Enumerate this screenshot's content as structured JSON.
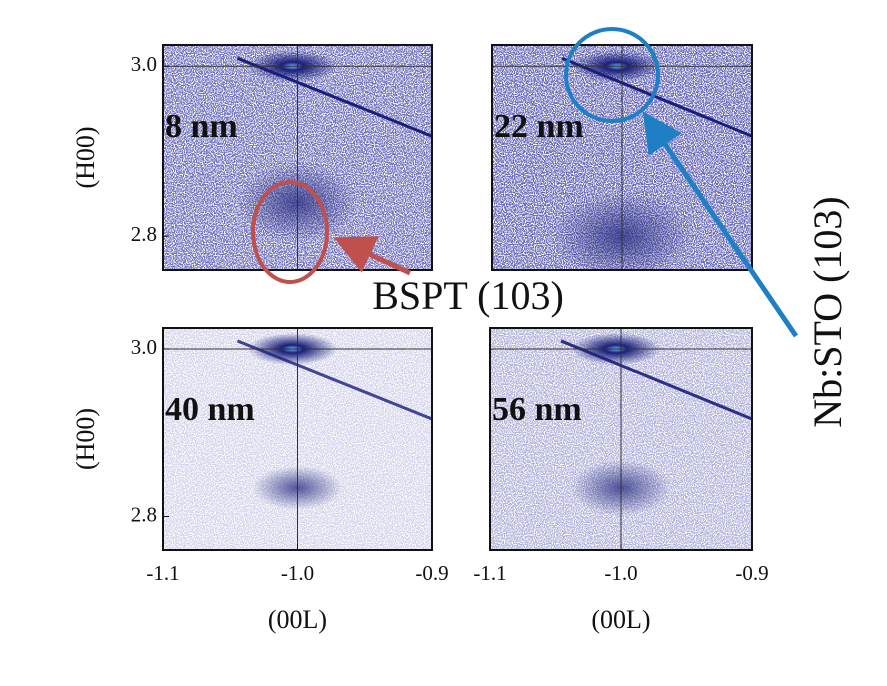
{
  "chart_data": [
    {
      "type": "map",
      "label": "8 nm",
      "ylabel": "(H00)",
      "xlim": [
        -1.1,
        -0.9
      ],
      "ylim": [
        2.76,
        3.025
      ],
      "yticks": [
        2.8,
        {
          "value": 3,
          "label": "3.0"
        }
      ],
      "crosshair": {
        "x": -1,
        "y": 3
      }
    },
    {
      "type": "map",
      "label": "22 nm",
      "xlim": [
        -1.1,
        -0.9
      ],
      "ylim": [
        2.76,
        3.025
      ],
      "crosshair": {
        "x": -1,
        "y": 3
      }
    },
    {
      "type": "map",
      "label": "40 nm",
      "ylabel": "(H00)",
      "xlabel": "(00L)",
      "xlim": [
        -1.1,
        -0.9
      ],
      "ylim": [
        2.76,
        3.025
      ],
      "xticks": [
        -1.1,
        {
          "value": -1,
          "label": "-1.0"
        },
        -0.9
      ],
      "yticks": [
        2.8,
        {
          "value": 3,
          "label": "3.0"
        }
      ],
      "crosshair": {
        "x": -1,
        "y": 3
      }
    },
    {
      "type": "map",
      "label": "56 nm",
      "xlabel": "(00L)",
      "xlim": [
        -1.1,
        -0.9
      ],
      "ylim": [
        2.76,
        3.025
      ],
      "xticks": [
        -1.1,
        {
          "value": -1,
          "label": "-1.0"
        },
        -0.9
      ],
      "crosshair": {
        "x": -1,
        "y": 3
      }
    }
  ],
  "annotations": {
    "bspt": "BSPT (103)",
    "nbsto": "Nb:STO (103)"
  }
}
